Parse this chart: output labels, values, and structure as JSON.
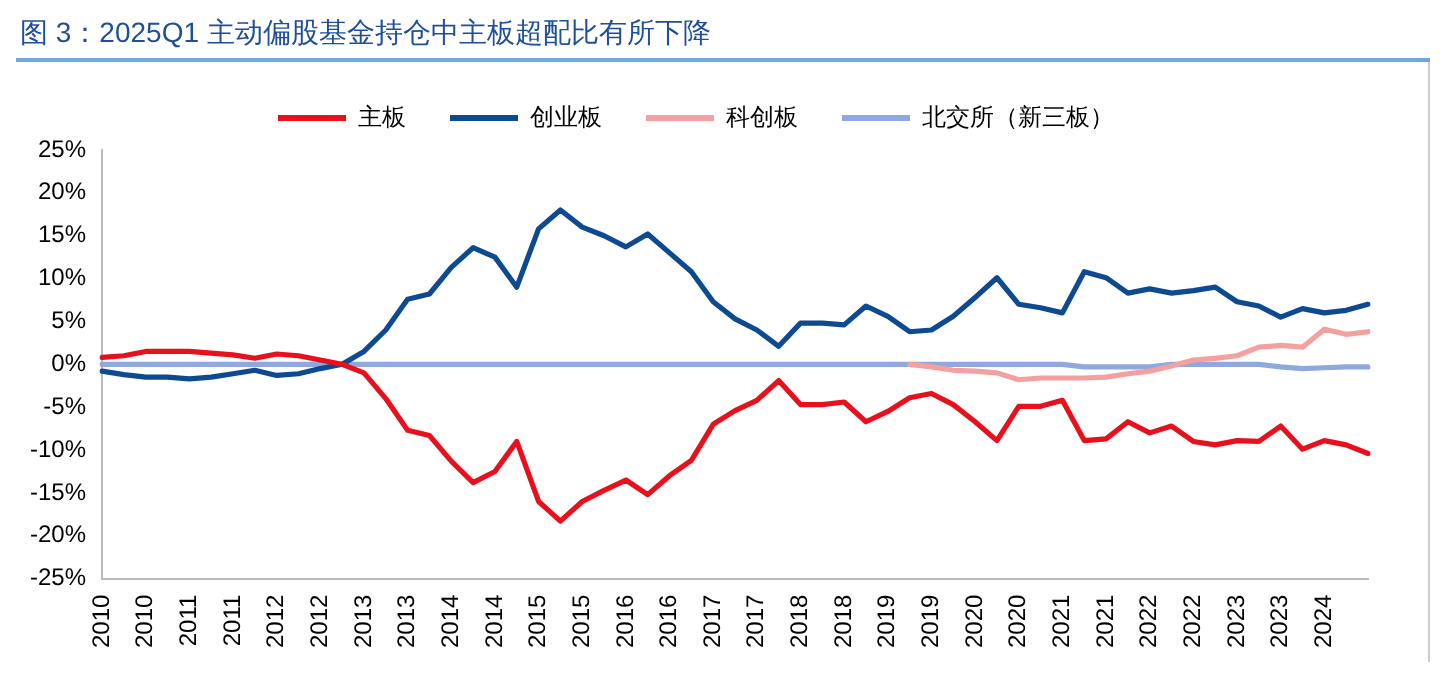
{
  "chart_data": {
    "type": "line",
    "title": "图 3：2025Q1 主动偏股基金持仓中主板超配比有所下降",
    "categories": [
      "2010",
      null,
      "2010",
      null,
      "2011",
      null,
      "2011",
      null,
      "2012",
      null,
      "2012",
      null,
      "2013",
      null,
      "2013",
      null,
      "2014",
      null,
      "2014",
      null,
      "2015",
      null,
      "2015",
      null,
      "2016",
      null,
      "2016",
      null,
      "2017",
      null,
      "2017",
      null,
      "2018",
      null,
      "2018",
      null,
      "2019",
      null,
      "2019",
      null,
      "2020",
      null,
      "2020",
      null,
      "2021",
      null,
      "2021",
      null,
      "2022",
      null,
      "2022",
      null,
      "2023",
      null,
      "2023",
      null,
      "2024",
      null,
      null
    ],
    "series": [
      {
        "name": "主板",
        "color": "#e8101c",
        "values": [
          0.8,
          1,
          1.5,
          1.5,
          1.5,
          1.3,
          1.1,
          0.7,
          1.2,
          1,
          0.5,
          0,
          -1,
          -4,
          -7.7,
          -8.3,
          -11.3,
          -13.8,
          -12.5,
          -9,
          -16,
          -18.3,
          -16,
          -14.7,
          -13.5,
          -15.2,
          -13,
          -11.2,
          -7,
          -5.4,
          -4.2,
          -1.9,
          -4.7,
          -4.7,
          -4.4,
          -6.7,
          -5.5,
          -3.9,
          -3.4,
          -4.7,
          -6.7,
          -8.9,
          -4.9,
          -4.9,
          -4.2,
          -8.9,
          -8.7,
          -6.7,
          -8,
          -7.2,
          -9,
          -9.4,
          -8.9,
          -9,
          -7.2,
          -9.9,
          -8.9,
          -9.4,
          -10.4
        ]
      },
      {
        "name": "创业板",
        "color": "#0d4a91",
        "values": [
          -0.8,
          -1.2,
          -1.5,
          -1.5,
          -1.7,
          -1.5,
          -1.1,
          -0.7,
          -1.3,
          -1.1,
          -0.5,
          0,
          1.5,
          4,
          7.6,
          8.2,
          11.3,
          13.6,
          12.5,
          9,
          15.8,
          18,
          16,
          15,
          13.7,
          15.2,
          13,
          10.8,
          7.3,
          5.3,
          4,
          2.1,
          4.8,
          4.8,
          4.6,
          6.8,
          5.6,
          3.8,
          4,
          5.6,
          7.8,
          10.1,
          7,
          6.6,
          6,
          10.8,
          10.1,
          8.3,
          8.8,
          8.3,
          8.6,
          9,
          7.3,
          6.8,
          5.5,
          6.5,
          6,
          6.3,
          7
        ]
      },
      {
        "name": "科创板",
        "color": "#f4a0a0",
        "values": [
          null,
          null,
          null,
          null,
          null,
          null,
          null,
          null,
          null,
          null,
          null,
          null,
          null,
          null,
          null,
          null,
          null,
          null,
          null,
          null,
          null,
          null,
          null,
          null,
          null,
          null,
          null,
          null,
          null,
          null,
          null,
          null,
          null,
          null,
          null,
          null,
          null,
          0,
          -0.3,
          -0.7,
          -0.8,
          -1,
          -1.8,
          -1.6,
          -1.6,
          -1.6,
          -1.5,
          -1.1,
          -0.8,
          -0.2,
          0.5,
          0.7,
          1,
          2,
          2.2,
          2,
          4.1,
          3.5,
          3.8
        ]
      },
      {
        "name": "北交所（新三板）",
        "color": "#8fa9e0",
        "values": [
          0,
          0,
          0,
          0,
          0,
          0,
          0,
          0,
          0,
          0,
          0,
          0,
          0,
          0,
          0,
          0,
          0,
          0,
          0,
          0,
          0,
          0,
          0,
          0,
          0,
          0,
          0,
          0,
          0,
          0,
          0,
          0,
          0,
          0,
          0,
          0,
          0,
          0,
          0,
          0,
          0,
          0,
          0,
          0,
          0,
          -0.3,
          -0.3,
          -0.3,
          -0.3,
          0,
          0,
          0,
          0,
          0,
          -0.3,
          -0.5,
          -0.4,
          -0.3,
          -0.3
        ]
      }
    ],
    "ylim": [
      -25,
      25
    ],
    "yticks": [
      {
        "value": -25,
        "label": "-25%"
      },
      {
        "value": -20,
        "label": "-20%"
      },
      {
        "value": -15,
        "label": "-15%"
      },
      {
        "value": -10,
        "label": "-10%"
      },
      {
        "value": -5,
        "label": "-5%"
      },
      {
        "value": 0,
        "label": "0%"
      },
      {
        "value": 5,
        "label": "5%"
      },
      {
        "value": 10,
        "label": "10%"
      },
      {
        "value": 15,
        "label": "15%"
      },
      {
        "value": 20,
        "label": "20%"
      },
      {
        "value": 25,
        "label": "25%"
      }
    ],
    "grid": false,
    "legend": "top",
    "marker": "none",
    "line_style": "solid"
  }
}
